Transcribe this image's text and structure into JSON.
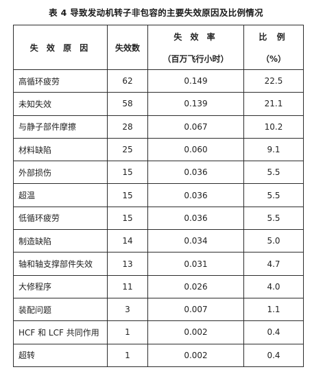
{
  "caption": "表 4  导致发动机转子非包容的主要失效原因及比例情况",
  "table": {
    "headers": {
      "cause": "失 效 原 因",
      "count": "失效数",
      "rate_top": "失 效 率",
      "rate_bottom": "（百万飞行小时）",
      "ratio_top": "比 例",
      "ratio_bottom": "（%）"
    },
    "rows": [
      {
        "cause": "高循环疲劳",
        "count": "62",
        "rate": "0.149",
        "percent": "22.5"
      },
      {
        "cause": "未知失效",
        "count": "58",
        "rate": "0.139",
        "percent": "21.1"
      },
      {
        "cause": "与静子部件摩擦",
        "count": "28",
        "rate": "0.067",
        "percent": "10.2"
      },
      {
        "cause": "材料缺陷",
        "count": "25",
        "rate": "0.060",
        "percent": "9.1"
      },
      {
        "cause": "外部损伤",
        "count": "15",
        "rate": "0.036",
        "percent": "5.5"
      },
      {
        "cause": "超温",
        "count": "15",
        "rate": "0.036",
        "percent": "5.5"
      },
      {
        "cause": "低循环疲劳",
        "count": "15",
        "rate": "0.036",
        "percent": "5.5"
      },
      {
        "cause": "制造缺陷",
        "count": "14",
        "rate": "0.034",
        "percent": "5.0"
      },
      {
        "cause": "轴和轴支撑部件失效",
        "count": "13",
        "rate": "0.031",
        "percent": "4.7"
      },
      {
        "cause": "大修程序",
        "count": "11",
        "rate": "0.026",
        "percent": "4.0"
      },
      {
        "cause": "装配问题",
        "count": "3",
        "rate": "0.007",
        "percent": "1.1"
      },
      {
        "cause": "HCF 和 LCF 共同作用",
        "count": "1",
        "rate": "0.002",
        "percent": "0.4"
      },
      {
        "cause": "超转",
        "count": "1",
        "rate": "0.002",
        "percent": "0.4"
      }
    ]
  }
}
